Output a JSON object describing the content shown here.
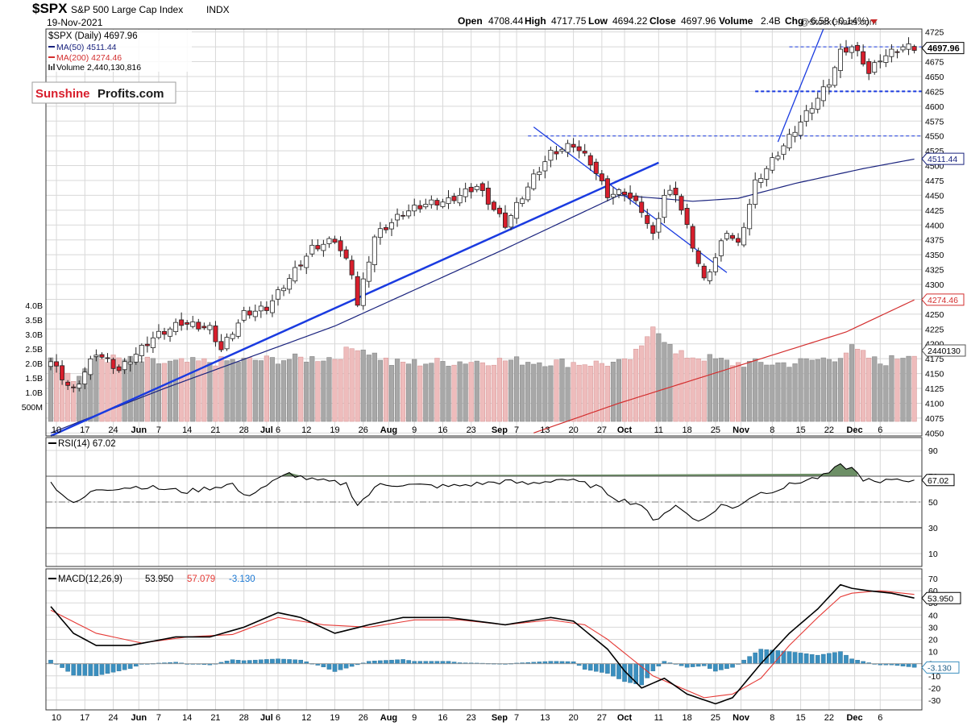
{
  "header": {
    "symbol": "$SPX",
    "name": "S&P 500 Large Cap Index",
    "exchange": "INDX",
    "date": "19-Nov-2021",
    "watermark": "@StockCharts.com",
    "open_label": "Open",
    "open": "4708.44",
    "high_label": "High",
    "high": "4717.75",
    "low_label": "Low",
    "low": "4694.22",
    "close_label": "Close",
    "close": "4697.96",
    "volume_label": "Volume",
    "volume": "2.4B",
    "chg_label": "Chg",
    "chg": "-6.58 (-0.14%)"
  },
  "legend": {
    "price": "$SPX (Daily) 4697.96",
    "ma50": "MA(50) 4511.44",
    "ma200": "MA(200) 4274.46",
    "volume": "Volume 2,440,130,816"
  },
  "logo": {
    "part1": "Sunshine",
    "part2": "Profits.com"
  },
  "colors": {
    "up": "#ffffff",
    "down": "#d81e2c",
    "ma50": "#1a237e",
    "ma200": "#d32f2f",
    "trend": "#1a3be0",
    "rsi": "#000000",
    "signal": "#e53935",
    "hist": "#3b8fbf",
    "vol_up": "#a8a8a8",
    "vol_down": "#eebcbc"
  },
  "price_labels": {
    "last": "4697.96",
    "ma50": "4511.44",
    "ma200": "4274.46",
    "volume": "2440130"
  },
  "rsi_labels": {
    "title": "RSI(14) 67.02",
    "last": "67.02"
  },
  "macd_labels": {
    "title": "MACD(12,26,9)",
    "macd": "53.950",
    "signal": "57.079",
    "hist": "-3.130",
    "last": "53.950",
    "hist_last": "-3.130"
  },
  "chart_data": {
    "type": "candlestick",
    "x_ticks": [
      "10",
      "17",
      "24",
      "Jun",
      "7",
      "14",
      "21",
      "28",
      "Jul",
      "6",
      "12",
      "19",
      "26",
      "Aug",
      "9",
      "16",
      "23",
      "Sep",
      "7",
      "13",
      "20",
      "27",
      "Oct",
      "11",
      "18",
      "25",
      "Nov",
      "8",
      "15",
      "22",
      "Dec",
      "6"
    ],
    "price_ticks": [
      4725,
      4700,
      4675,
      4650,
      4625,
      4600,
      4575,
      4550,
      4525,
      4500,
      4475,
      4450,
      4425,
      4400,
      4375,
      4350,
      4325,
      4300,
      4275,
      4250,
      4225,
      4200,
      4175,
      4150,
      4125,
      4100,
      4075,
      4050
    ],
    "price_ylim": [
      4045,
      4730
    ],
    "volume_ticks": [
      "4.0B",
      "3.5B",
      "3.0B",
      "2.5B",
      "2.0B",
      "1.5B",
      "1.0B",
      "500M"
    ],
    "volume_ylim_billions": [
      0,
      4.3
    ],
    "horizontal_levels": [
      4700,
      4625,
      4550
    ],
    "anchors_close": [
      [
        0,
        4170
      ],
      [
        3,
        4130
      ],
      [
        4,
        4120
      ],
      [
        8,
        4185
      ],
      [
        12,
        4155
      ],
      [
        18,
        4210
      ],
      [
        23,
        4235
      ],
      [
        28,
        4225
      ],
      [
        30,
        4190
      ],
      [
        34,
        4250
      ],
      [
        38,
        4260
      ],
      [
        42,
        4310
      ],
      [
        46,
        4360
      ],
      [
        50,
        4375
      ],
      [
        53,
        4320
      ],
      [
        54,
        4265
      ],
      [
        57,
        4380
      ],
      [
        62,
        4420
      ],
      [
        66,
        4435
      ],
      [
        70,
        4440
      ],
      [
        75,
        4465
      ],
      [
        80,
        4400
      ],
      [
        85,
        4480
      ],
      [
        88,
        4520
      ],
      [
        92,
        4535
      ],
      [
        95,
        4505
      ],
      [
        98,
        4450
      ],
      [
        101,
        4455
      ],
      [
        104,
        4425
      ],
      [
        106,
        4380
      ],
      [
        108,
        4450
      ],
      [
        110,
        4455
      ],
      [
        113,
        4365
      ],
      [
        115,
        4305
      ],
      [
        117,
        4345
      ],
      [
        119,
        4390
      ],
      [
        121,
        4365
      ],
      [
        124,
        4470
      ],
      [
        128,
        4520
      ],
      [
        131,
        4560
      ],
      [
        134,
        4600
      ],
      [
        137,
        4640
      ],
      [
        139,
        4690
      ],
      [
        141,
        4700
      ],
      [
        143,
        4675
      ],
      [
        144,
        4655
      ],
      [
        146,
        4680
      ],
      [
        148,
        4690
      ],
      [
        150,
        4700
      ],
      [
        152,
        4698
      ]
    ],
    "volume_anchors_billions": [
      [
        0,
        2.3
      ],
      [
        4,
        1.4
      ],
      [
        8,
        2.2
      ],
      [
        20,
        2.0
      ],
      [
        35,
        2.1
      ],
      [
        50,
        2.2
      ],
      [
        54,
        2.6
      ],
      [
        60,
        2.0
      ],
      [
        80,
        2.1
      ],
      [
        95,
        2.0
      ],
      [
        101,
        2.0
      ],
      [
        104,
        2.5
      ],
      [
        106,
        3.4
      ],
      [
        110,
        2.3
      ],
      [
        115,
        2.2
      ],
      [
        120,
        2.0
      ],
      [
        130,
        2.0
      ],
      [
        138,
        2.2
      ],
      [
        141,
        2.5
      ],
      [
        146,
        2.0
      ],
      [
        152,
        2.4
      ]
    ],
    "ma50_anchors": [
      [
        0,
        4050
      ],
      [
        20,
        4125
      ],
      [
        50,
        4230
      ],
      [
        80,
        4360
      ],
      [
        100,
        4450
      ],
      [
        107,
        4445
      ],
      [
        113,
        4440
      ],
      [
        121,
        4445
      ],
      [
        131,
        4470
      ],
      [
        143,
        4495
      ],
      [
        152,
        4511
      ]
    ],
    "ma200_anchors": [
      [
        85,
        4050
      ],
      [
        100,
        4100
      ],
      [
        120,
        4160
      ],
      [
        140,
        4220
      ],
      [
        152,
        4274
      ]
    ],
    "trend_lines": [
      {
        "from": [
          0,
          4045
        ],
        "to": [
          107,
          4505
        ]
      },
      {
        "from": [
          85,
          4565
        ],
        "to": [
          119,
          4320
        ]
      },
      {
        "from": [
          128,
          4540
        ],
        "to": [
          136,
          4730
        ]
      }
    ],
    "rsi": {
      "ticks": [
        90,
        70,
        50,
        30,
        10
      ],
      "ylim": [
        0,
        100
      ],
      "levels": [
        70,
        50,
        30
      ],
      "last": 67.02,
      "anchors": [
        [
          0,
          65
        ],
        [
          4,
          48
        ],
        [
          8,
          60
        ],
        [
          16,
          62
        ],
        [
          24,
          58
        ],
        [
          32,
          64
        ],
        [
          34,
          54
        ],
        [
          42,
          72
        ],
        [
          46,
          67
        ],
        [
          52,
          64
        ],
        [
          54,
          48
        ],
        [
          58,
          64
        ],
        [
          70,
          62
        ],
        [
          80,
          66
        ],
        [
          84,
          64
        ],
        [
          90,
          68
        ],
        [
          96,
          62
        ],
        [
          100,
          52
        ],
        [
          104,
          48
        ],
        [
          106,
          35
        ],
        [
          108,
          42
        ],
        [
          110,
          47
        ],
        [
          113,
          38
        ],
        [
          115,
          36
        ],
        [
          118,
          48
        ],
        [
          120,
          45
        ],
        [
          124,
          56
        ],
        [
          128,
          60
        ],
        [
          132,
          66
        ],
        [
          136,
          70
        ],
        [
          139,
          78
        ],
        [
          141,
          76
        ],
        [
          143,
          68
        ],
        [
          146,
          64
        ],
        [
          148,
          68
        ],
        [
          152,
          67
        ]
      ]
    },
    "macd": {
      "ticks": [
        70,
        60,
        50,
        40,
        30,
        20,
        10,
        0,
        -10,
        -20,
        -30
      ],
      "ylim": [
        -38,
        78
      ],
      "macd_anchors": [
        [
          0,
          47
        ],
        [
          4,
          25
        ],
        [
          8,
          15
        ],
        [
          14,
          15
        ],
        [
          22,
          22
        ],
        [
          28,
          22
        ],
        [
          34,
          30
        ],
        [
          40,
          42
        ],
        [
          44,
          38
        ],
        [
          50,
          25
        ],
        [
          56,
          32
        ],
        [
          62,
          38
        ],
        [
          70,
          38
        ],
        [
          80,
          32
        ],
        [
          88,
          38
        ],
        [
          92,
          35
        ],
        [
          98,
          12
        ],
        [
          101,
          -6
        ],
        [
          104,
          -20
        ],
        [
          108,
          -12
        ],
        [
          112,
          -25
        ],
        [
          117,
          -33
        ],
        [
          120,
          -28
        ],
        [
          125,
          0
        ],
        [
          130,
          25
        ],
        [
          135,
          45
        ],
        [
          139,
          65
        ],
        [
          141,
          62
        ],
        [
          144,
          60
        ],
        [
          148,
          58
        ],
        [
          152,
          54
        ]
      ],
      "signal_anchors": [
        [
          0,
          44
        ],
        [
          8,
          25
        ],
        [
          16,
          17
        ],
        [
          24,
          22
        ],
        [
          32,
          24
        ],
        [
          40,
          38
        ],
        [
          48,
          32
        ],
        [
          56,
          30
        ],
        [
          64,
          36
        ],
        [
          72,
          36
        ],
        [
          80,
          32
        ],
        [
          88,
          36
        ],
        [
          94,
          32
        ],
        [
          98,
          20
        ],
        [
          102,
          5
        ],
        [
          106,
          -10
        ],
        [
          110,
          -18
        ],
        [
          115,
          -28
        ],
        [
          120,
          -25
        ],
        [
          125,
          -12
        ],
        [
          130,
          15
        ],
        [
          135,
          38
        ],
        [
          139,
          55
        ],
        [
          141,
          58
        ],
        [
          146,
          60
        ],
        [
          152,
          57
        ]
      ],
      "hist_last": -3.13
    },
    "n_bars": 153
  }
}
